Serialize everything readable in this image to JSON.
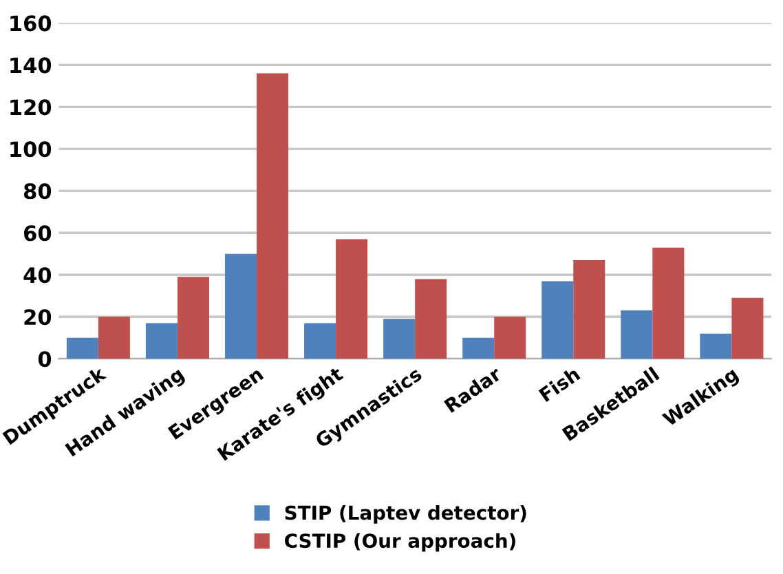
{
  "chart_data": {
    "type": "bar",
    "categories": [
      "Dumptruck",
      "Hand waving",
      "Evergreen",
      "Karate's fight",
      "Gymnastics",
      "Radar",
      "Fish",
      "Basketball",
      "Walking"
    ],
    "series": [
      {
        "name": "STIP (Laptev detector)",
        "color": "#4f81bd",
        "values": [
          10,
          17,
          50,
          17,
          19,
          10,
          37,
          23,
          12
        ]
      },
      {
        "name": "CSTIP (Our approach)",
        "color": "#c0504d",
        "values": [
          20,
          39,
          136,
          57,
          38,
          20,
          47,
          53,
          29
        ]
      }
    ],
    "ylim": [
      0,
      160
    ],
    "yticks": [
      0,
      20,
      40,
      60,
      80,
      100,
      120,
      140,
      160
    ],
    "grid": "y",
    "legend": "bottom"
  }
}
